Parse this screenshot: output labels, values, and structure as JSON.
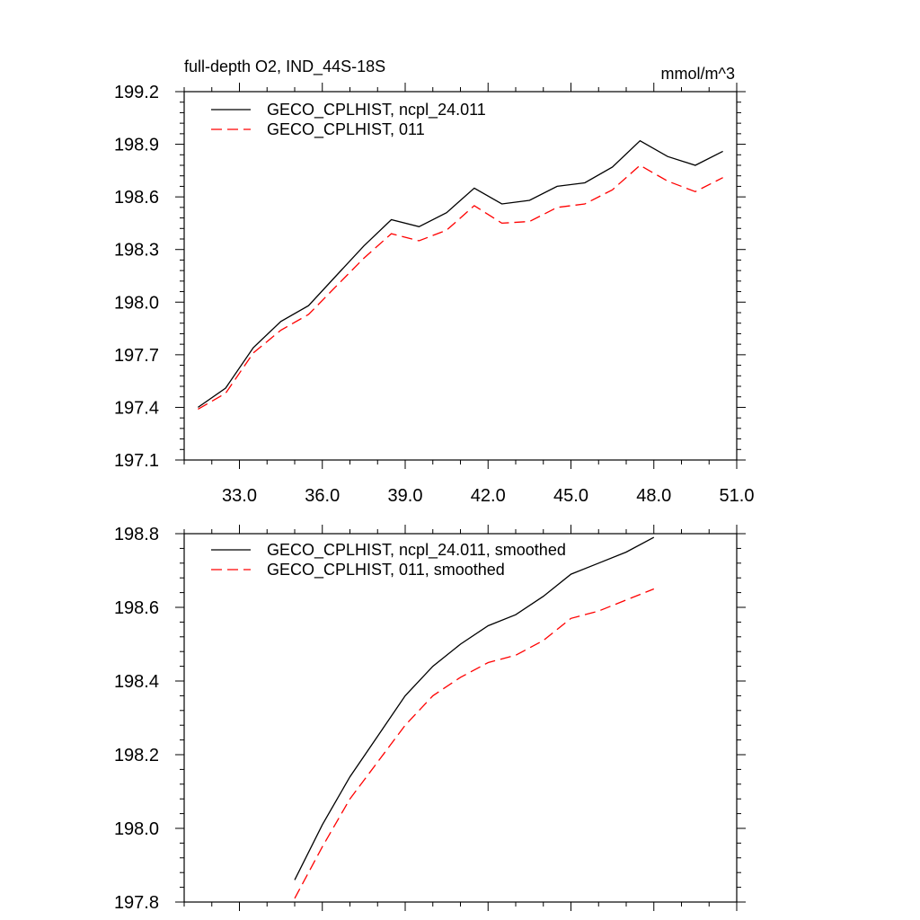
{
  "chart_data": [
    {
      "type": "line",
      "title": "full-depth O2, IND_44S-18S",
      "units": "mmol/m^3",
      "xlim": [
        31.0,
        51.0
      ],
      "ylim": [
        197.1,
        199.2
      ],
      "x_ticks": [
        33.0,
        36.0,
        39.0,
        42.0,
        45.0,
        48.0,
        51.0
      ],
      "x_tick_labels": [
        "33.0",
        "36.0",
        "39.0",
        "42.0",
        "45.0",
        "48.0",
        "51.0"
      ],
      "y_ticks": [
        197.1,
        197.4,
        197.7,
        198.0,
        198.3,
        198.6,
        198.9,
        199.2
      ],
      "y_tick_labels": [
        "197.1",
        "197.4",
        "197.7",
        "198.0",
        "198.3",
        "198.6",
        "198.9",
        "199.2"
      ],
      "legend_position": "top-left",
      "series": [
        {
          "name": "GECO_CPLHIST, ncpl_24.011",
          "color": "#000000",
          "dash": "solid",
          "x": [
            31.5,
            32.5,
            33.5,
            34.5,
            35.5,
            36.5,
            37.5,
            38.5,
            39.5,
            40.5,
            41.5,
            42.5,
            43.5,
            44.5,
            45.5,
            46.5,
            47.5,
            48.5,
            49.5,
            50.5
          ],
          "values": [
            197.4,
            197.51,
            197.74,
            197.89,
            197.98,
            198.15,
            198.32,
            198.47,
            198.43,
            198.51,
            198.65,
            198.56,
            198.58,
            198.66,
            198.68,
            198.77,
            198.92,
            198.83,
            198.78,
            198.86
          ]
        },
        {
          "name": "GECO_CPLHIST, 011",
          "color": "#ff0000",
          "dash": "dashed",
          "x": [
            31.5,
            32.5,
            33.5,
            34.5,
            35.5,
            36.5,
            37.5,
            38.5,
            39.5,
            40.5,
            41.5,
            42.5,
            43.5,
            44.5,
            45.5,
            46.5,
            47.5,
            48.5,
            49.5,
            50.5
          ],
          "values": [
            197.39,
            197.48,
            197.71,
            197.84,
            197.93,
            198.09,
            198.25,
            198.39,
            198.35,
            198.41,
            198.55,
            198.45,
            198.46,
            198.54,
            198.56,
            198.64,
            198.78,
            198.69,
            198.63,
            198.71
          ]
        }
      ]
    },
    {
      "type": "line",
      "title": "",
      "xlim": [
        31.0,
        51.0
      ],
      "ylim": [
        197.8,
        198.8
      ],
      "x_ticks": [
        33.0,
        36.0,
        39.0,
        42.0,
        45.0,
        48.0,
        51.0
      ],
      "y_ticks": [
        197.8,
        198.0,
        198.2,
        198.4,
        198.6,
        198.8
      ],
      "y_tick_labels": [
        "197.8",
        "198.0",
        "198.2",
        "198.4",
        "198.6",
        "198.8"
      ],
      "legend_position": "top-left",
      "series": [
        {
          "name": "GECO_CPLHIST, ncpl_24.011, smoothed",
          "color": "#000000",
          "dash": "solid",
          "x": [
            35.0,
            36.0,
            37.0,
            38.0,
            39.0,
            40.0,
            41.0,
            42.0,
            43.0,
            44.0,
            45.0,
            46.0,
            47.0,
            48.0
          ],
          "values": [
            197.86,
            198.01,
            198.14,
            198.25,
            198.36,
            198.44,
            198.5,
            198.55,
            198.58,
            198.63,
            198.69,
            198.72,
            198.75,
            198.79
          ]
        },
        {
          "name": "GECO_CPLHIST, 011, smoothed",
          "color": "#ff0000",
          "dash": "dashed",
          "x": [
            35.0,
            36.0,
            37.0,
            38.0,
            39.0,
            40.0,
            41.0,
            42.0,
            43.0,
            44.0,
            45.0,
            46.0,
            47.0,
            48.0
          ],
          "values": [
            197.81,
            197.95,
            198.08,
            198.18,
            198.28,
            198.36,
            198.41,
            198.45,
            198.47,
            198.51,
            198.57,
            198.59,
            198.62,
            198.65
          ]
        }
      ]
    }
  ]
}
